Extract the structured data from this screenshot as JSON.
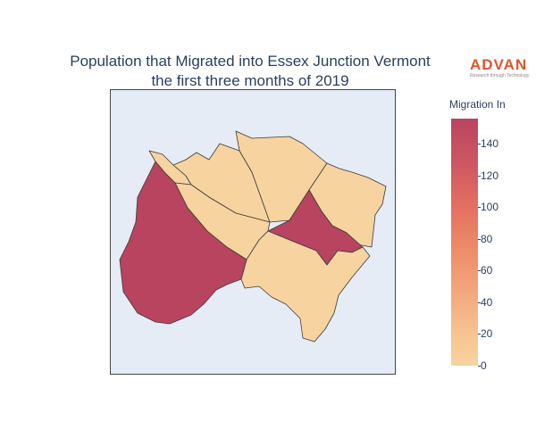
{
  "title": {
    "line1": "Population that Migrated into Essex Junction Vermont",
    "line2": "the first three months of 2019"
  },
  "logo": {
    "name": "ADVAN",
    "tagline": "Research through Technology"
  },
  "colors": {
    "background_plot": "#e5ecf6",
    "low": "#f7d3a0",
    "high": "#b9445f",
    "border": "#444444",
    "title_text": "#2a3f5f",
    "logo": "#e0552b"
  },
  "colorbar": {
    "title": "Migration In",
    "ticks": [
      "0",
      "20",
      "40",
      "60",
      "80",
      "100",
      "120",
      "140"
    ],
    "range": [
      0,
      157
    ]
  },
  "map": {
    "regions": [
      {
        "name": "western-tract",
        "value": 157
      },
      {
        "name": "central-east-tract",
        "value": 157
      },
      {
        "name": "north-west-strip",
        "value": 0
      },
      {
        "name": "north-west-tract",
        "value": 0
      },
      {
        "name": "north-central-tract",
        "value": 0
      },
      {
        "name": "north-east-tract",
        "value": 0
      },
      {
        "name": "center-west-tract",
        "value": 0
      },
      {
        "name": "south-tract",
        "value": 0
      }
    ]
  }
}
